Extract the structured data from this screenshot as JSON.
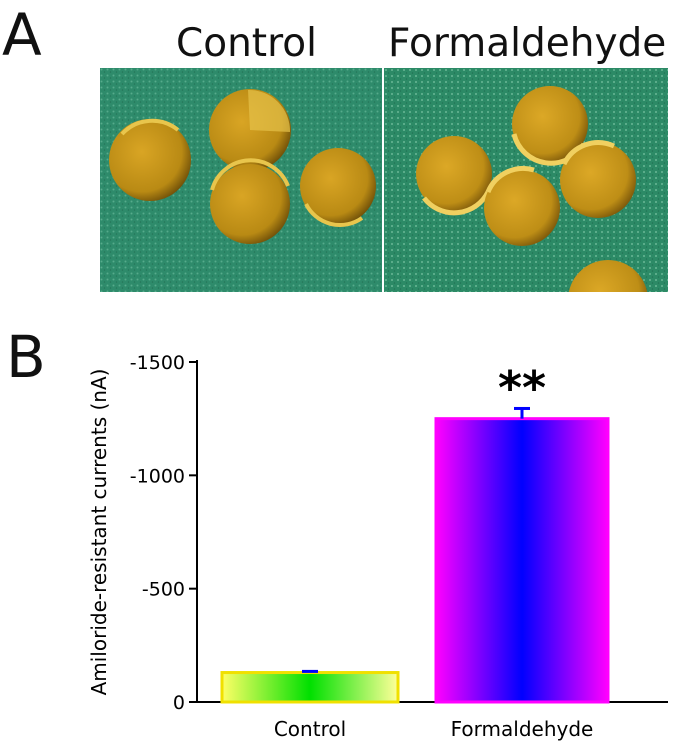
{
  "figure": {
    "panel_a_letter": "A",
    "panel_b_letter": "B",
    "panel_a_titles": [
      "Control",
      "Formaldehyde"
    ]
  },
  "colors": {
    "photo_background": "#2d8a6a",
    "oocyte_yolk": "#c9961a",
    "oocyte_highlight": "#e6c24a",
    "control_bar_gradient": [
      "#ffff66",
      "#00e000",
      "#ffff99"
    ],
    "formaldehyde_bar_gradient": [
      "#ff00ff",
      "#0000ff",
      "#ff00ff"
    ],
    "error_bar": "#0000ff"
  },
  "chart_data": {
    "type": "bar",
    "categories": [
      "Control",
      "Formaldehyde"
    ],
    "values": [
      -130,
      -1250
    ],
    "errors": [
      5,
      45
    ],
    "ylabel": "Amiloride-resistant currents (nA)",
    "xlabel": "",
    "ylim": [
      0,
      -1500
    ],
    "yticks": [
      0,
      -500,
      -1000,
      -1500
    ],
    "ytick_labels": [
      "0",
      "-500",
      "-1000",
      "-1500"
    ],
    "annotations": [
      {
        "category": "Formaldehyde",
        "text": "**"
      }
    ],
    "grid": false,
    "legend": "none"
  }
}
